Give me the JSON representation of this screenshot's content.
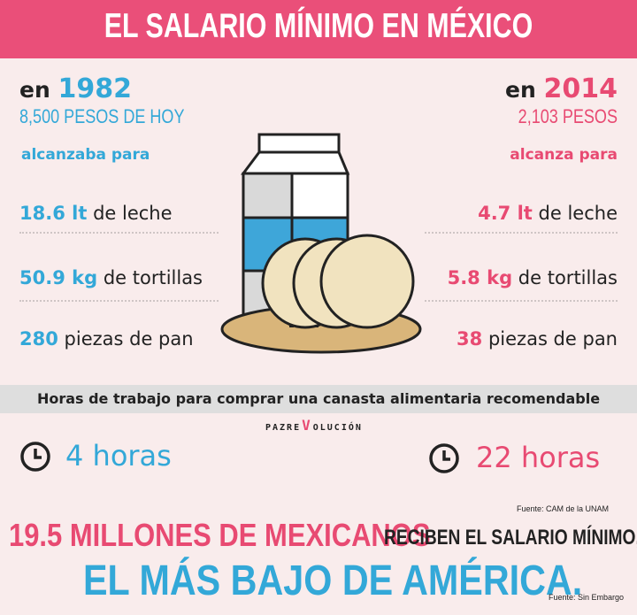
{
  "header": {
    "title": "EL SALARIO MÍNIMO EN MÉXICO"
  },
  "left": {
    "year_prefix": "en",
    "year": "1982",
    "subtitle": "8,500 PESOS DE HOY",
    "verb": "alcanzaba para",
    "items": [
      {
        "value": "18.6 lt",
        "label": "de leche"
      },
      {
        "value": "50.9 kg",
        "label": "de tortillas"
      },
      {
        "value": "280",
        "label": "piezas de pan"
      }
    ],
    "hours": "4 horas"
  },
  "right": {
    "year_prefix": "en",
    "year": "2014",
    "subtitle": "2,103 PESOS",
    "verb": "alcanza para",
    "items": [
      {
        "value": "4.7 lt",
        "label": "de leche"
      },
      {
        "value": "5.8 kg",
        "label": "de tortillas"
      },
      {
        "value": "38",
        "label": "piezas de pan"
      }
    ],
    "hours": "22 horas"
  },
  "hours_bar": {
    "text": "Horas de trabajo para comprar una canasta alimentaria recomendable"
  },
  "brand": {
    "left": "PAZRE",
    "right": "OLUCIÓN"
  },
  "source_1": "Fuente: CAM de la UNAM",
  "footer": {
    "line1_pink": "19.5 MILLONES DE MEXICANOS",
    "line1_dark": "RECIBEN EL SALARIO MÍNIMO,",
    "line2": "EL MÁS BAJO DE AMÉRICA.",
    "source": "Fuente: Sin Embargo"
  },
  "colors": {
    "pink": "#ea4f79",
    "blue": "#33a8d8",
    "background": "#f9ecec"
  }
}
